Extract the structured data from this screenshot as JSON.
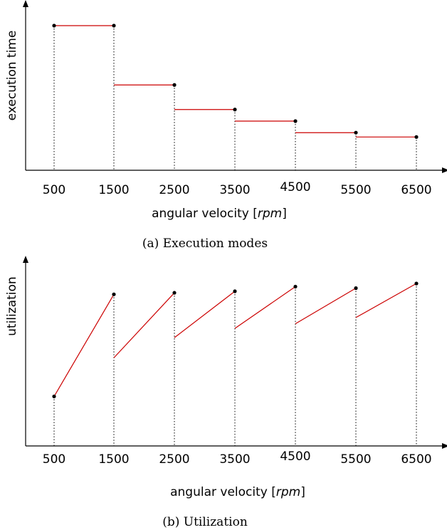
{
  "chart_data": [
    {
      "type": "line",
      "caption": "(a) Execution modes",
      "xlabel": "angular velocity",
      "xunit": "rpm",
      "ylabel": "execution time",
      "categories": [
        "500",
        "1500",
        "2500",
        "3500",
        "4500",
        "5500",
        "6500"
      ],
      "style": "step",
      "series": [
        {
          "values": [
            [
              1.0,
              1.0
            ],
            [
              0.59,
              0.59
            ],
            [
              0.42,
              0.42
            ],
            [
              0.34,
              0.34
            ],
            [
              0.26,
              0.26
            ],
            [
              0.23,
              0.23
            ]
          ]
        }
      ],
      "ylim": [
        0,
        1.05
      ],
      "grid": false,
      "legend": "none",
      "color": "#cc0000"
    },
    {
      "type": "line",
      "caption": "(b) Utilization",
      "xlabel": "angular velocity",
      "xunit": "rpm",
      "ylabel": "utilization",
      "categories": [
        "500",
        "1500",
        "2500",
        "3500",
        "4500",
        "5500",
        "6500"
      ],
      "style": "segments",
      "series": [
        {
          "values": [
            [
              0.32,
              0.98
            ],
            [
              0.57,
              0.99
            ],
            [
              0.7,
              1.0
            ],
            [
              0.76,
              1.03
            ],
            [
              0.79,
              1.02
            ],
            [
              0.83,
              1.05
            ]
          ]
        }
      ],
      "ylim": [
        0,
        1.1
      ],
      "grid": false,
      "legend": "none",
      "color": "#cc0000"
    }
  ]
}
